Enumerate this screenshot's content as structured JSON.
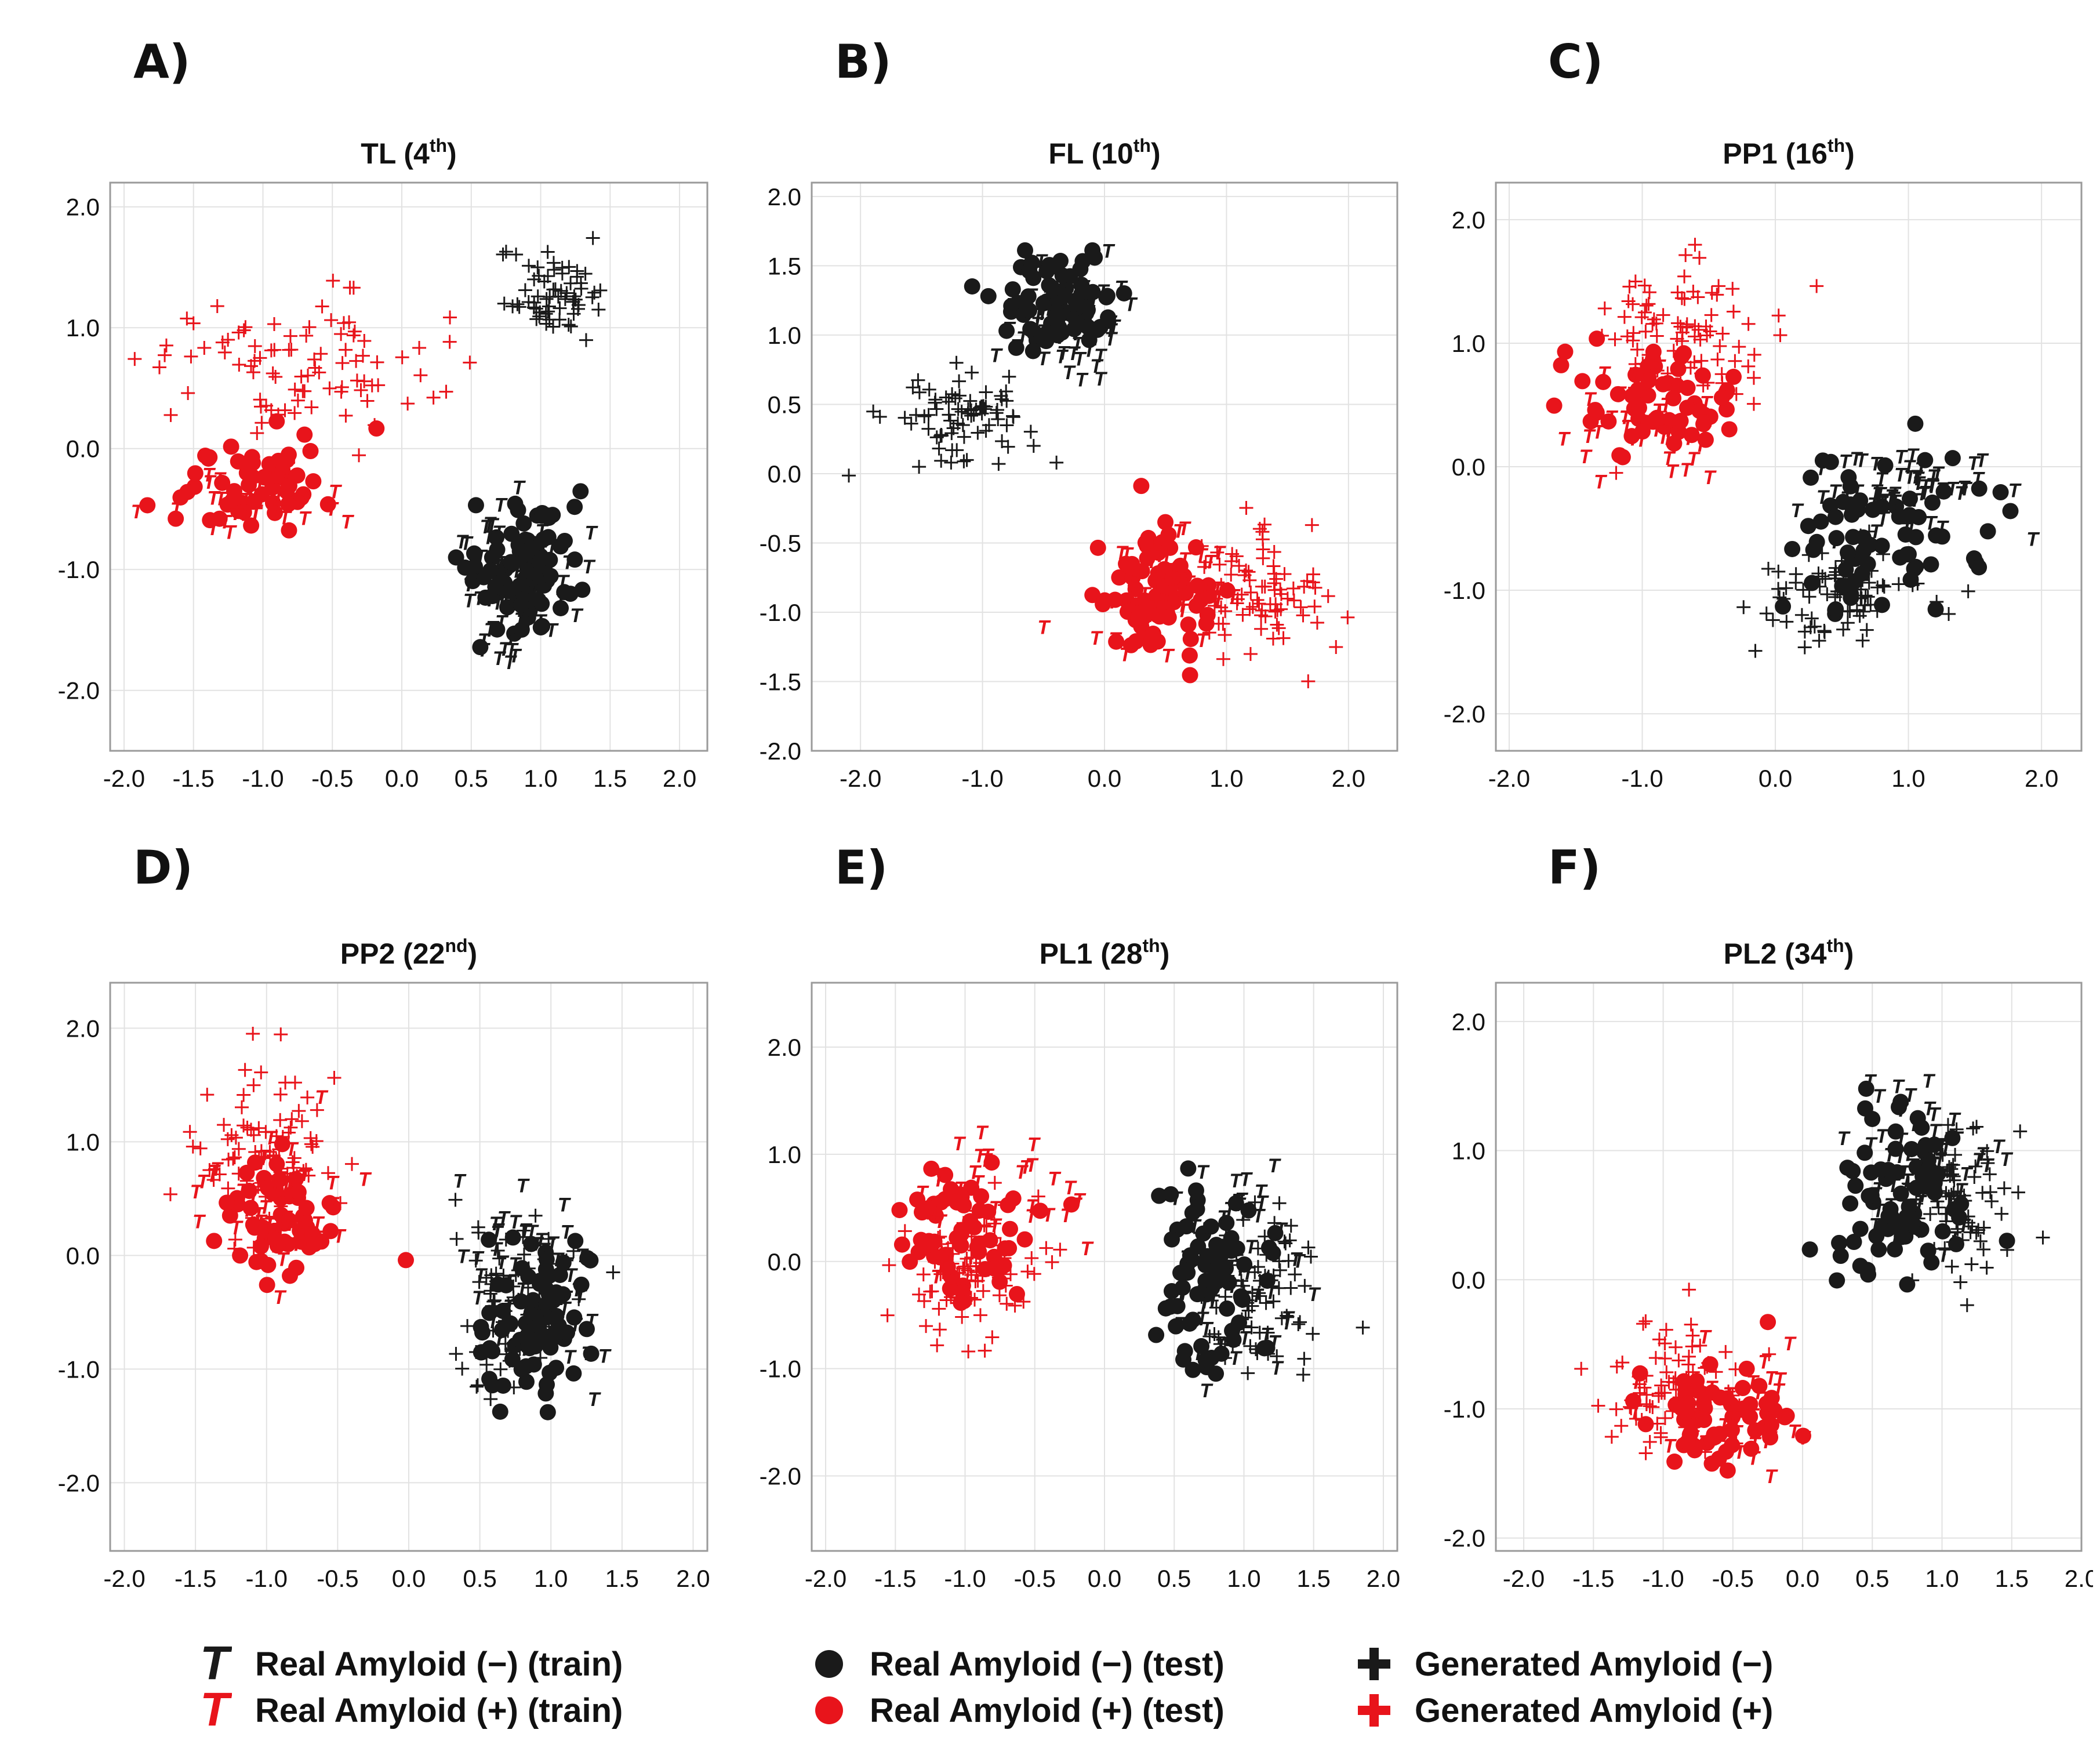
{
  "colors": {
    "negative": "#1a1a1a",
    "positive": "#e8141b",
    "grid": "#e2e2e2",
    "frame": "#9a9a9a"
  },
  "legend": {
    "items": [
      {
        "label": "Real Amyloid (−) (train)",
        "symbol": "T",
        "color": "negative",
        "icon": "t-letter-icon"
      },
      {
        "label": "Real Amyloid (+) (train)",
        "symbol": "T",
        "color": "positive",
        "icon": "t-letter-icon"
      },
      {
        "label": "Real Amyloid (−) (test)",
        "symbol": "circle",
        "color": "negative",
        "icon": "circle-icon"
      },
      {
        "label": "Real Amyloid (+) (test)",
        "symbol": "circle",
        "color": "positive",
        "icon": "circle-icon"
      },
      {
        "label": "Generated Amyloid (−)",
        "symbol": "plus",
        "color": "negative",
        "icon": "plus-icon"
      },
      {
        "label": "Generated Amyloid (+)",
        "symbol": "plus",
        "color": "positive",
        "icon": "plus-icon"
      }
    ]
  },
  "chart_data": [
    {
      "panel": "A)",
      "type": "scatter",
      "title": "TL (4",
      "title_sup": "th",
      "title_end": ")",
      "xlim": [
        -2.1,
        2.2
      ],
      "ylim": [
        -2.5,
        2.2
      ],
      "xticks": [
        -2.0,
        -1.5,
        -1.0,
        -0.5,
        0.0,
        0.5,
        1.0,
        1.5,
        2.0
      ],
      "xtick_labels": [
        "-2.0",
        "-1.5",
        "-1.0",
        "-0.5",
        "0.0",
        "0.5",
        "1.0",
        "1.5",
        "2.0"
      ],
      "yticks": [
        2.0,
        1.0,
        0.0,
        -1.0,
        -2.0
      ],
      "ytick_labels": [
        "2.0",
        "1.0",
        "0.0",
        "-1.0",
        "-2.0"
      ],
      "clusters": [
        {
          "series": "gen_pos",
          "center": [
            -0.8,
            0.7
          ],
          "spread": [
            0.9,
            0.55
          ],
          "n": 90
        },
        {
          "series": "gen_neg",
          "center": [
            1.05,
            1.3
          ],
          "spread": [
            0.35,
            0.3
          ],
          "n": 65
        },
        {
          "series": "test_pos",
          "center": [
            -1.0,
            -0.3
          ],
          "spread": [
            0.55,
            0.35
          ],
          "n": 60
        },
        {
          "series": "train_pos",
          "center": [
            -1.0,
            -0.4
          ],
          "spread": [
            0.7,
            0.35
          ],
          "n": 30
        },
        {
          "series": "test_neg",
          "center": [
            0.9,
            -1.0
          ],
          "spread": [
            0.35,
            0.5
          ],
          "n": 85
        },
        {
          "series": "train_neg",
          "center": [
            0.8,
            -1.1
          ],
          "spread": [
            0.4,
            0.55
          ],
          "n": 70
        }
      ]
    },
    {
      "panel": "B)",
      "type": "scatter",
      "title": "FL (10",
      "title_sup": "th",
      "title_end": ")",
      "xlim": [
        -2.4,
        2.4
      ],
      "ylim": [
        -2.0,
        2.1
      ],
      "xticks": [
        -2.0,
        -1.0,
        0.0,
        1.0,
        2.0
      ],
      "xtick_labels": [
        "-2.0",
        "-1.0",
        "0.0",
        "1.0",
        "2.0"
      ],
      "yticks": [
        2.0,
        1.5,
        1.0,
        0.5,
        0.0,
        -0.5,
        -1.0,
        -1.5,
        -2.0
      ],
      "ytick_labels": [
        "2.0",
        "1.5",
        "1.0",
        "0.5",
        "0.0",
        "-0.5",
        "-1.0",
        "-1.5",
        "-2.0"
      ],
      "clusters": [
        {
          "series": "test_neg",
          "center": [
            -0.4,
            1.25
          ],
          "spread": [
            0.45,
            0.3
          ],
          "n": 70
        },
        {
          "series": "train_neg",
          "center": [
            -0.3,
            1.1
          ],
          "spread": [
            0.5,
            0.35
          ],
          "n": 55
        },
        {
          "series": "gen_neg",
          "center": [
            -1.2,
            0.4
          ],
          "spread": [
            0.5,
            0.28
          ],
          "n": 80
        },
        {
          "series": "test_pos",
          "center": [
            0.4,
            -0.9
          ],
          "spread": [
            0.4,
            0.4
          ],
          "n": 80
        },
        {
          "series": "train_pos",
          "center": [
            0.5,
            -0.8
          ],
          "spread": [
            0.55,
            0.45
          ],
          "n": 40
        },
        {
          "series": "gen_pos",
          "center": [
            1.2,
            -0.9
          ],
          "spread": [
            0.55,
            0.4
          ],
          "n": 90
        }
      ]
    },
    {
      "panel": "C)",
      "type": "scatter",
      "title": "PP1 (16",
      "title_sup": "th",
      "title_end": ")",
      "xlim": [
        -2.1,
        2.3
      ],
      "ylim": [
        -2.3,
        2.3
      ],
      "xticks": [
        -2.0,
        -1.0,
        0.0,
        1.0,
        2.0
      ],
      "xtick_labels": [
        "-2.0",
        "-1.0",
        "0.0",
        "1.0",
        "2.0"
      ],
      "yticks": [
        2.0,
        1.0,
        0.0,
        -1.0,
        -2.0
      ],
      "ytick_labels": [
        "2.0",
        "1.0",
        "0.0",
        "-1.0",
        "-2.0"
      ],
      "clusters": [
        {
          "series": "gen_pos",
          "center": [
            -0.7,
            1.1
          ],
          "spread": [
            0.6,
            0.6
          ],
          "n": 90
        },
        {
          "series": "test_pos",
          "center": [
            -0.9,
            0.5
          ],
          "spread": [
            0.5,
            0.35
          ],
          "n": 65
        },
        {
          "series": "train_pos",
          "center": [
            -1.0,
            0.3
          ],
          "spread": [
            0.55,
            0.4
          ],
          "n": 30
        },
        {
          "series": "test_neg",
          "center": [
            0.8,
            -0.5
          ],
          "spread": [
            0.7,
            0.6
          ],
          "n": 70
        },
        {
          "series": "train_neg",
          "center": [
            1.0,
            -0.2
          ],
          "spread": [
            0.6,
            0.35
          ],
          "n": 55
        },
        {
          "series": "gen_neg",
          "center": [
            0.5,
            -1.0
          ],
          "spread": [
            0.55,
            0.35
          ],
          "n": 80
        }
      ]
    },
    {
      "panel": "D)",
      "type": "scatter",
      "title": "PP2 (22",
      "title_sup": "nd",
      "title_end": ")",
      "xlim": [
        -2.1,
        2.1
      ],
      "ylim": [
        -2.6,
        2.4
      ],
      "xticks": [
        -2.0,
        -1.5,
        -1.0,
        -0.5,
        0.0,
        0.5,
        1.0,
        1.5,
        2.0
      ],
      "xtick_labels": [
        "-2.0",
        "-1.5",
        "-1.0",
        "-0.5",
        "0.0",
        "0.5",
        "1.0",
        "1.5",
        "2.0"
      ],
      "yticks": [
        2.0,
        1.0,
        0.0,
        -1.0,
        -2.0
      ],
      "ytick_labels": [
        "2.0",
        "1.0",
        "0.0",
        "-1.0",
        "-2.0"
      ],
      "clusters": [
        {
          "series": "gen_pos",
          "center": [
            -1.0,
            0.9
          ],
          "spread": [
            0.45,
            0.65
          ],
          "n": 90
        },
        {
          "series": "test_pos",
          "center": [
            -0.9,
            0.3
          ],
          "spread": [
            0.45,
            0.55
          ],
          "n": 60
        },
        {
          "series": "train_pos",
          "center": [
            -1.0,
            0.5
          ],
          "spread": [
            0.5,
            0.7
          ],
          "n": 40
        },
        {
          "series": "test_neg",
          "center": [
            0.9,
            -0.6
          ],
          "spread": [
            0.4,
            0.65
          ],
          "n": 80
        },
        {
          "series": "train_neg",
          "center": [
            0.9,
            -0.3
          ],
          "spread": [
            0.45,
            0.75
          ],
          "n": 60
        },
        {
          "series": "gen_neg",
          "center": [
            0.7,
            -0.3
          ],
          "spread": [
            0.4,
            0.75
          ],
          "n": 80
        }
      ]
    },
    {
      "panel": "E)",
      "type": "scatter",
      "title": "PL1 (28",
      "title_sup": "th",
      "title_end": ")",
      "xlim": [
        -2.1,
        2.1
      ],
      "ylim": [
        -2.7,
        2.6
      ],
      "xticks": [
        -2.0,
        -1.5,
        -1.0,
        -0.5,
        0.0,
        0.5,
        1.0,
        1.5,
        2.0
      ],
      "xtick_labels": [
        "-2.0",
        "-1.5",
        "-1.0",
        "-0.5",
        "0.0",
        "0.5",
        "1.0",
        "1.5",
        "2.0"
      ],
      "yticks": [
        2.0,
        1.0,
        0.0,
        -1.0,
        -2.0
      ],
      "ytick_labels": [
        "2.0",
        "1.0",
        "0.0",
        "-1.0",
        "-2.0"
      ],
      "clusters": [
        {
          "series": "gen_pos",
          "center": [
            -1.0,
            -0.1
          ],
          "spread": [
            0.45,
            0.6
          ],
          "n": 90
        },
        {
          "series": "test_pos",
          "center": [
            -1.0,
            0.2
          ],
          "spread": [
            0.45,
            0.6
          ],
          "n": 65
        },
        {
          "series": "train_pos",
          "center": [
            -0.8,
            0.6
          ],
          "spread": [
            0.5,
            0.7
          ],
          "n": 35
        },
        {
          "series": "test_neg",
          "center": [
            0.8,
            -0.1
          ],
          "spread": [
            0.35,
            0.85
          ],
          "n": 75
        },
        {
          "series": "train_neg",
          "center": [
            0.9,
            0.0
          ],
          "spread": [
            0.4,
            0.9
          ],
          "n": 55
        },
        {
          "series": "gen_neg",
          "center": [
            1.1,
            -0.4
          ],
          "spread": [
            0.35,
            0.75
          ],
          "n": 80
        }
      ]
    },
    {
      "panel": "F)",
      "type": "scatter",
      "title": "PL2 (34",
      "title_sup": "th",
      "title_end": ")",
      "xlim": [
        -2.2,
        2.0
      ],
      "ylim": [
        -2.1,
        2.3
      ],
      "xticks": [
        -2.0,
        -1.5,
        -1.0,
        -0.5,
        0.0,
        0.5,
        1.0,
        1.5,
        2.0
      ],
      "xtick_labels": [
        "-2.0",
        "-1.5",
        "-1.0",
        "-0.5",
        "0.0",
        "0.5",
        "1.0",
        "1.5",
        "2.0"
      ],
      "yticks": [
        2.0,
        1.0,
        0.0,
        -1.0,
        -2.0
      ],
      "ytick_labels": [
        "2.0",
        "1.0",
        "0.0",
        "-1.0",
        "-2.0"
      ],
      "clusters": [
        {
          "series": "gen_pos",
          "center": [
            -0.9,
            -0.8
          ],
          "spread": [
            0.55,
            0.45
          ],
          "n": 90
        },
        {
          "series": "test_pos",
          "center": [
            -0.6,
            -1.1
          ],
          "spread": [
            0.5,
            0.35
          ],
          "n": 65
        },
        {
          "series": "train_pos",
          "center": [
            -0.5,
            -1.0
          ],
          "spread": [
            0.6,
            0.4
          ],
          "n": 35
        },
        {
          "series": "test_neg",
          "center": [
            0.7,
            0.6
          ],
          "spread": [
            0.45,
            0.6
          ],
          "n": 75
        },
        {
          "series": "train_neg",
          "center": [
            0.8,
            0.9
          ],
          "spread": [
            0.45,
            0.6
          ],
          "n": 55
        },
        {
          "series": "gen_neg",
          "center": [
            1.1,
            0.6
          ],
          "spread": [
            0.35,
            0.55
          ],
          "n": 80
        }
      ]
    }
  ]
}
